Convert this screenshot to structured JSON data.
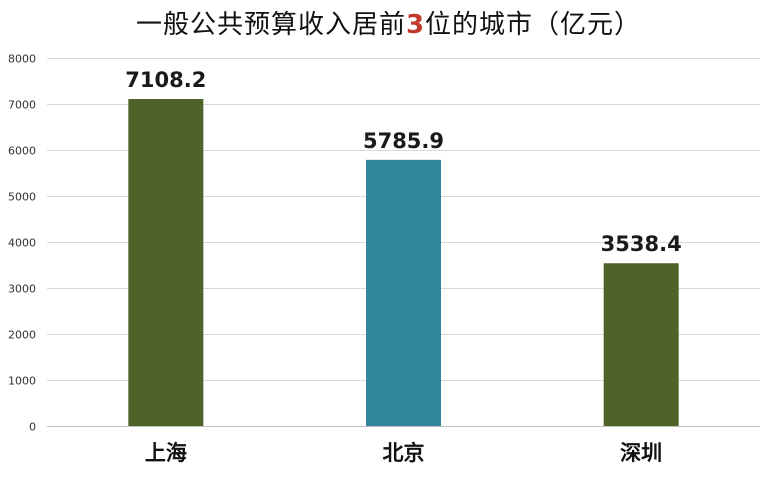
{
  "chart_data": {
    "type": "bar",
    "title": {
      "before": "一般公共预算收入居前",
      "highlight": "3",
      "after": "位的城市（亿元）"
    },
    "categories": [
      "上海",
      "北京",
      "深圳"
    ],
    "values": [
      7108.2,
      5785.9,
      3538.4
    ],
    "value_labels": [
      "7108.2",
      "5785.9",
      "3538.4"
    ],
    "bar_colors": [
      "#4f6228",
      "#31859c",
      "#4f6228"
    ],
    "title_highlight_color": "#c0392b",
    "ylim": [
      0,
      8000
    ],
    "yticks": [
      0,
      1000,
      2000,
      3000,
      4000,
      5000,
      6000,
      7000,
      8000
    ],
    "xlabel": "",
    "ylabel": "",
    "grid": true,
    "legend": "none"
  }
}
